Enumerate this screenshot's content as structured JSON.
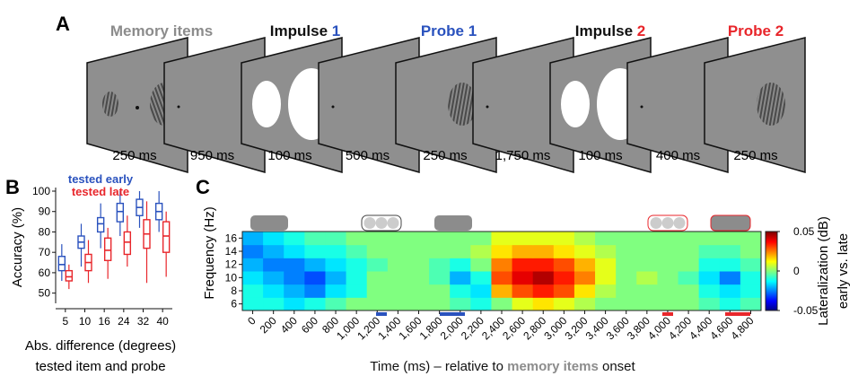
{
  "panel_a": {
    "letter": "A",
    "titles": [
      [
        "Memory items"
      ],
      [
        "Impulse ",
        "1"
      ],
      [
        "Probe 1"
      ],
      [
        "Impulse ",
        "2"
      ],
      [
        "Probe 2"
      ]
    ],
    "durations": [
      "250 ms",
      "950 ms",
      "100 ms",
      "500 ms",
      "250 ms",
      "1,750 ms",
      "100 ms",
      "400 ms",
      "250 ms"
    ]
  },
  "chart_data": [
    {
      "type": "box",
      "letter": "B",
      "ylabel": "Accuracy (%)",
      "xlabel": [
        "Abs. difference (degrees)",
        "tested item and probe"
      ],
      "categories": [
        "5",
        "10",
        "16",
        "24",
        "32",
        "40"
      ],
      "ylim": [
        45,
        100
      ],
      "yticks": [
        50,
        60,
        70,
        80,
        90,
        100
      ],
      "series": [
        {
          "name": "tested early",
          "color": "#2a52be",
          "min": [
            56,
            63,
            72,
            78,
            82,
            80
          ],
          "q1": [
            61,
            72,
            80,
            85,
            88,
            86
          ],
          "median": [
            64,
            75,
            84,
            90,
            92,
            90
          ],
          "q3": [
            68,
            78,
            87,
            94,
            96,
            94
          ],
          "max": [
            74,
            84,
            94,
            100,
            100,
            100
          ]
        },
        {
          "name": "tested late",
          "color": "#e8262b",
          "min": [
            52,
            55,
            57,
            63,
            55,
            58
          ],
          "q1": [
            56,
            61,
            66,
            69,
            72,
            70
          ],
          "median": [
            58,
            65,
            71,
            75,
            79,
            78
          ],
          "q3": [
            61,
            69,
            77,
            80,
            86,
            85
          ],
          "max": [
            64,
            76,
            82,
            88,
            95,
            90
          ]
        }
      ]
    },
    {
      "type": "heatmap",
      "letter": "C",
      "ylabel": "Frequency (Hz)",
      "xlabel": [
        "Time (ms) – relative to ",
        "memory items",
        " onset"
      ],
      "colorbar_label": [
        "Lateralization (dB)",
        "early vs. late"
      ],
      "x": [
        0,
        200,
        400,
        600,
        800,
        1000,
        1200,
        1400,
        1600,
        1800,
        2000,
        2200,
        2400,
        2600,
        2800,
        3000,
        3200,
        3400,
        3600,
        3800,
        4000,
        4200,
        4400,
        4600,
        4800
      ],
      "y": [
        6,
        8,
        10,
        12,
        14,
        16
      ],
      "values": [
        [
          -0.01,
          -0.01,
          -0.015,
          -0.01,
          -0.005,
          0,
          0,
          0,
          0,
          0,
          -0.005,
          -0.01,
          0,
          0.01,
          0.015,
          0.01,
          0.005,
          0,
          0,
          0,
          0,
          0,
          -0.005,
          -0.01,
          -0.005
        ],
        [
          -0.01,
          -0.015,
          -0.02,
          -0.025,
          -0.015,
          -0.01,
          0,
          0,
          0,
          0,
          -0.01,
          -0.015,
          0.02,
          0.03,
          0.035,
          0.03,
          0.015,
          0.005,
          0,
          0,
          0,
          0,
          -0.01,
          -0.015,
          -0.01
        ],
        [
          -0.015,
          -0.02,
          -0.025,
          -0.03,
          -0.02,
          -0.01,
          0,
          0,
          0,
          -0.005,
          -0.02,
          -0.01,
          0.03,
          0.04,
          0.045,
          0.035,
          0.025,
          0.01,
          0,
          0.005,
          0,
          -0.005,
          -0.015,
          -0.025,
          -0.01
        ],
        [
          -0.02,
          -0.025,
          -0.025,
          -0.02,
          -0.015,
          -0.01,
          -0.005,
          0,
          0,
          -0.005,
          -0.01,
          0,
          0.025,
          0.035,
          0.035,
          0.03,
          0.02,
          0.01,
          0,
          0,
          0,
          0,
          -0.01,
          -0.01,
          -0.005
        ],
        [
          -0.025,
          -0.02,
          -0.015,
          -0.01,
          -0.01,
          -0.005,
          0,
          0,
          0,
          0,
          0,
          0.005,
          0.015,
          0.02,
          0.02,
          0.015,
          0.01,
          0.005,
          0,
          0,
          0,
          0,
          -0.005,
          -0.005,
          0
        ],
        [
          -0.02,
          -0.015,
          -0.01,
          -0.005,
          -0.005,
          0,
          0,
          0,
          0,
          0,
          0,
          0,
          0.01,
          0.01,
          0.01,
          0.01,
          0.005,
          0,
          0,
          0,
          0,
          0,
          0,
          0,
          0
        ]
      ],
      "xlim": [
        -100,
        4900
      ],
      "ylim": [
        5,
        17
      ],
      "xticks": [
        0,
        200,
        400,
        600,
        800,
        {
          "value": 1000,
          "label": "1,000"
        },
        {
          "value": 1200,
          "label": "1,200"
        },
        {
          "value": 1400,
          "label": "1,400"
        },
        {
          "value": 1600,
          "label": "1,600"
        },
        {
          "value": 1800,
          "label": "1,800"
        },
        {
          "value": 2000,
          "label": "2,000"
        },
        {
          "value": 2200,
          "label": "2,200"
        },
        {
          "value": 2400,
          "label": "2,400"
        },
        {
          "value": 2600,
          "label": "2,600"
        },
        {
          "value": 2800,
          "label": "2,800"
        },
        {
          "value": 3000,
          "label": "3,000"
        },
        {
          "value": 3200,
          "label": "3,200"
        },
        {
          "value": 3400,
          "label": "3,400"
        },
        {
          "value": 3600,
          "label": "3,600"
        },
        {
          "value": 3800,
          "label": "3,800"
        },
        {
          "value": 4000,
          "label": "4,000"
        },
        {
          "value": 4200,
          "label": "4,200"
        },
        {
          "value": 4400,
          "label": "4,400"
        },
        {
          "value": 4600,
          "label": "4,600"
        },
        {
          "value": 4800,
          "label": "4,800"
        }
      ],
      "yticks": [
        6,
        8,
        10,
        12,
        14,
        16
      ],
      "clim": [
        -0.05,
        0.05
      ],
      "cticks": [
        0.05,
        0,
        -0.05
      ],
      "colormap": "jet"
    }
  ]
}
